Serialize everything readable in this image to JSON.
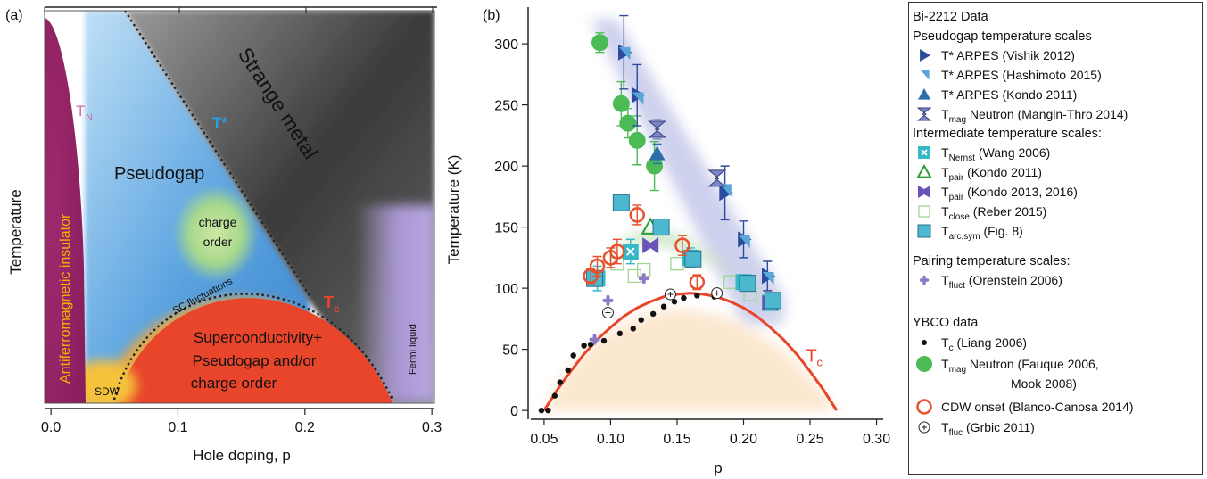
{
  "panel_a": {
    "label": "(a)",
    "xlabel": "Hole doping, p",
    "ylabel": "Temperature",
    "region_labels": {
      "strange_metal": "Strange metal",
      "t_star": "T*",
      "t_n": "T",
      "t_n_sub": "N",
      "pseudogap": "Pseudogap",
      "charge_order_1": "charge",
      "charge_order_2": "order",
      "sc_fluctuations": "SC fluctuations",
      "t_c": "T",
      "t_c_sub": "c",
      "sc_1": "Superconductivity+",
      "sc_2": "Pseudogap and/or",
      "sc_3": "charge order",
      "afm": "Antiferromagnetic insulator",
      "sdw": "SDW",
      "fermi_liquid": "Fermi liquid"
    },
    "colors": {
      "afm": "#9e2a6e",
      "pseudogap": "#4c95d8",
      "strange_metal": "#4a4a4a",
      "sc": "#e8452a",
      "charge_order": "#9ccf7a",
      "sdw": "#f5c23a",
      "fermi_liquid": "#9a84c8",
      "t_star_label": "#2b9fe0",
      "afm_label": "#f0b400"
    }
  },
  "chart_data": [
    {
      "panel": "a",
      "type": "area",
      "xlabel": "Hole doping, p",
      "ylabel": "Temperature",
      "xlim": [
        -0.005,
        0.302
      ],
      "x_ticks": [
        "0.0",
        "0.1",
        "0.2",
        "0.3"
      ],
      "x_tick_values": [
        0.0,
        0.1,
        0.2,
        0.3
      ],
      "y_ticks_labeled": false
    },
    {
      "panel": "b",
      "type": "scatter",
      "xlabel": "p",
      "ylabel": "Temperature (K)",
      "xlim": [
        0.04,
        0.305
      ],
      "ylim": [
        -5,
        330
      ],
      "x_ticks": [
        "0.05",
        "0.10",
        "0.15",
        "0.20",
        "0.25",
        "0.30"
      ],
      "x_tick_values": [
        0.05,
        0.1,
        0.15,
        0.2,
        0.25,
        0.3
      ],
      "y_ticks": [
        "0",
        "50",
        "100",
        "150",
        "200",
        "250",
        "300"
      ],
      "y_tick_values": [
        0,
        50,
        100,
        150,
        200,
        250,
        300
      ],
      "curves": [
        {
          "name": "Tc",
          "label": "T",
          "sub": "c",
          "color": "#e8452a",
          "x": [
            0.05,
            0.06,
            0.07,
            0.08,
            0.09,
            0.1,
            0.11,
            0.12,
            0.13,
            0.14,
            0.15,
            0.16,
            0.17,
            0.18,
            0.19,
            0.2,
            0.21,
            0.22,
            0.23,
            0.24,
            0.25,
            0.26,
            0.27
          ],
          "y": [
            0,
            17,
            32,
            46,
            58,
            68,
            77,
            84,
            89,
            93,
            95,
            96,
            95,
            93,
            89,
            84,
            77,
            68,
            58,
            46,
            32,
            17,
            0
          ]
        }
      ],
      "series": [
        {
          "name": "T* ARPES (Vishik 2012)",
          "marker": "tri-right",
          "color": "#2c4a9e",
          "points": [
            [
              0.11,
              293
            ],
            [
              0.12,
              258
            ],
            [
              0.186,
              178
            ],
            [
              0.2,
              140
            ],
            [
              0.218,
              110
            ]
          ],
          "err": [
            30,
            25,
            22,
            15,
            12
          ]
        },
        {
          "name": "T* ARPES (Hashimoto 2015)",
          "marker": "tri-corner",
          "color": "#5aa6d8",
          "points": [
            [
              0.11,
              292
            ],
            [
              0.12,
              255
            ],
            [
              0.186,
              180
            ],
            [
              0.2,
              138
            ],
            [
              0.218,
              108
            ]
          ],
          "err": [
            0,
            0,
            0,
            0,
            0
          ]
        },
        {
          "name": "T* ARPES (Kondo 2011)",
          "marker": "tri-up",
          "color": "#2a6fa8",
          "points": [
            [
              0.135,
              210
            ]
          ],
          "err": [
            8
          ]
        },
        {
          "name": "Tmag Neutron (Mangin-Thro 2014)",
          "marker": "hourglass",
          "color": "#7b86c6",
          "points": [
            [
              0.135,
              230
            ],
            [
              0.18,
              190
            ]
          ],
          "err": [
            8,
            0
          ]
        },
        {
          "name": "TNernst (Wang 2006)",
          "marker": "square-x",
          "color": "#35b8c8",
          "points": [
            [
              0.09,
              108
            ],
            [
              0.115,
              130
            ],
            [
              0.16,
              125
            ],
            [
              0.2,
              105
            ],
            [
              0.22,
              88
            ]
          ],
          "err": [
            10,
            10,
            8,
            6,
            5
          ]
        },
        {
          "name": "Tpair (Kondo 2011)",
          "marker": "tri-open",
          "color": "#2a9a3a",
          "points": [
            [
              0.13,
              150
            ]
          ],
          "err": [
            0
          ]
        },
        {
          "name": "Tpair (Kondo 2013, 2016)",
          "marker": "bowtie",
          "color": "#6a52b8",
          "points": [
            [
              0.13,
              135
            ],
            [
              0.22,
              88
            ]
          ],
          "err": [
            0,
            0
          ]
        },
        {
          "name": "Tclose (Reber 2015)",
          "marker": "square-open",
          "color": "#9ed68e",
          "points": [
            [
              0.105,
              120
            ],
            [
              0.118,
              110
            ],
            [
              0.125,
              115
            ],
            [
              0.15,
              120
            ],
            [
              0.19,
              105
            ],
            [
              0.205,
              95
            ]
          ],
          "err": [
            0,
            0,
            0,
            0,
            0,
            0
          ]
        },
        {
          "name": "Tarc,sym (Fig. 8)",
          "marker": "square",
          "color": "#4cb8d0",
          "points": [
            [
              0.088,
              108
            ],
            [
              0.108,
              170
            ],
            [
              0.138,
              150
            ],
            [
              0.162,
              124
            ],
            [
              0.203,
              104
            ],
            [
              0.222,
              90
            ]
          ],
          "err": [
            0,
            0,
            0,
            0,
            0,
            0
          ]
        },
        {
          "name": "Tfluct (Orenstein 2006)",
          "marker": "plus-small",
          "color": "#8f78c8",
          "points": [
            [
              0.088,
              58
            ],
            [
              0.098,
              90
            ],
            [
              0.125,
              108
            ]
          ],
          "err": [
            0,
            0,
            0
          ]
        },
        {
          "name": "Tc (Liang 2006)",
          "marker": "dot",
          "color": "#111111",
          "points": [
            [
              0.048,
              0
            ],
            [
              0.053,
              0
            ],
            [
              0.058,
              12
            ],
            [
              0.062,
              23
            ],
            [
              0.068,
              33
            ],
            [
              0.072,
              45
            ],
            [
              0.08,
              53
            ],
            [
              0.085,
              54
            ],
            [
              0.095,
              57
            ],
            [
              0.107,
              63
            ],
            [
              0.117,
              67
            ],
            [
              0.123,
              74
            ],
            [
              0.132,
              79
            ],
            [
              0.14,
              85
            ],
            [
              0.148,
              89
            ],
            [
              0.155,
              92
            ],
            [
              0.165,
              94
            ],
            [
              0.178,
              93
            ]
          ],
          "err": []
        },
        {
          "name": "Tmag Neutron (Fauque 2006, Mook 2008)",
          "marker": "circle",
          "color": "#4cbb55",
          "points": [
            [
              0.092,
              301
            ],
            [
              0.108,
              251
            ],
            [
              0.113,
              235
            ],
            [
              0.12,
              221
            ],
            [
              0.133,
              200
            ]
          ],
          "err": [
            8,
            18,
            12,
            20,
            20
          ]
        },
        {
          "name": "CDW onset (Blanco-Canosa 2014)",
          "marker": "circle-open",
          "color": "#e9502d",
          "points": [
            [
              0.085,
              110
            ],
            [
              0.09,
              118
            ],
            [
              0.1,
              125
            ],
            [
              0.105,
              130
            ],
            [
              0.12,
              160
            ],
            [
              0.154,
              135
            ],
            [
              0.165,
              105
            ]
          ],
          "err": [
            6,
            8,
            8,
            10,
            8,
            8,
            6
          ]
        },
        {
          "name": "Tfluc (Grbic 2011)",
          "marker": "circle-plus",
          "color": "#222222",
          "points": [
            [
              0.098,
              80
            ],
            [
              0.145,
              95
            ],
            [
              0.18,
              96
            ]
          ],
          "err": []
        }
      ]
    }
  ],
  "panel_b": {
    "label": "(b)",
    "xlabel": "p",
    "ylabel": "Temperature (K)",
    "tc_label": "T",
    "tc_sub": "c"
  },
  "legend": {
    "title": "Bi-2212 Data",
    "group1": "Pseudogap temperature scales",
    "group2": "Intermediate temperature scales:",
    "group3": "Pairing temperature scales:",
    "group4": "YBCO data",
    "items": [
      {
        "pre": "T* ARPES (Vishik 2012)",
        "sub": "",
        "post": ""
      },
      {
        "pre": "T* ARPES (Hashimoto 2015)",
        "sub": "",
        "post": ""
      },
      {
        "pre": "T* ARPES (Kondo 2011)",
        "sub": "",
        "post": ""
      },
      {
        "pre": "T",
        "sub": "mag",
        "post": " Neutron (Mangin-Thro 2014)"
      },
      {
        "pre": "T",
        "sub": "Nernst",
        "post": " (Wang 2006)"
      },
      {
        "pre": "T",
        "sub": "pair",
        "post": " (Kondo 2011)"
      },
      {
        "pre": "T",
        "sub": "pair",
        "post": " (Kondo 2013, 2016)"
      },
      {
        "pre": "T",
        "sub": "close",
        "post": " (Reber 2015)"
      },
      {
        "pre": "T",
        "sub": "arc,sym",
        "post": " (Fig. 8)"
      },
      {
        "pre": "T",
        "sub": "fluct",
        "post": " (Orenstein 2006)"
      },
      {
        "pre": "T",
        "sub": "c",
        "post": " (Liang 2006)"
      },
      {
        "pre": "T",
        "sub": "mag",
        "post": " Neutron  (Fauque 2006,",
        "line2": "Mook 2008)"
      },
      {
        "pre": "CDW onset (Blanco-Canosa 2014)",
        "sub": "",
        "post": ""
      },
      {
        "pre": "T",
        "sub": "fluc",
        "post": " (Grbic 2011)"
      }
    ]
  }
}
